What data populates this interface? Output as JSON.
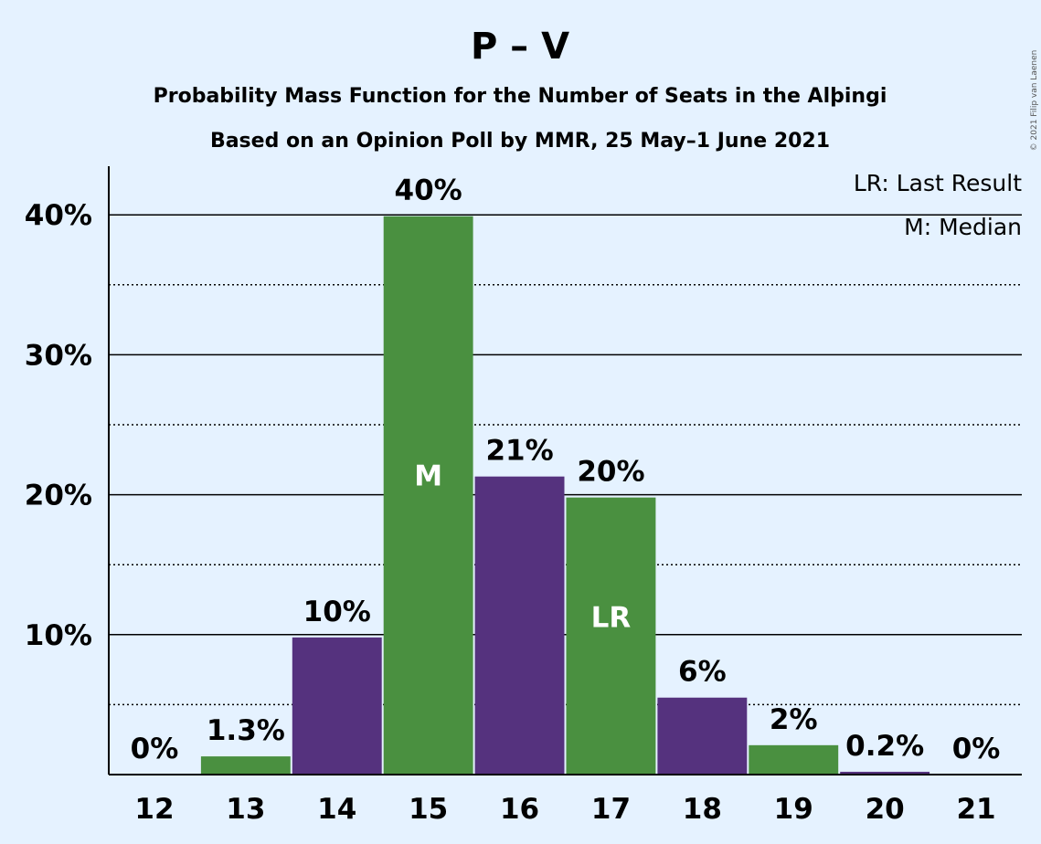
{
  "chart_data": {
    "type": "bar",
    "title": "P – V",
    "subtitle1": "Probability Mass Function for the Number of Seats in the Alþingi",
    "subtitle2": "Based on an Opinion Poll by MMR, 25 May–1 June 2021",
    "categories": [
      "12",
      "13",
      "14",
      "15",
      "16",
      "17",
      "18",
      "19",
      "20",
      "21"
    ],
    "values": [
      0,
      1.3,
      9.8,
      39.9,
      21.3,
      19.8,
      5.5,
      2.1,
      0.2,
      0
    ],
    "data_labels": [
      "0%",
      "1.3%",
      "10%",
      "40%",
      "21%",
      "20%",
      "6%",
      "2%",
      "0.2%",
      "0%"
    ],
    "bar_colors": [
      "#4a9040",
      "#4a9040",
      "#55327e",
      "#4a9040",
      "#55327e",
      "#4a9040",
      "#55327e",
      "#4a9040",
      "#55327e",
      "#4a9040"
    ],
    "in_bar_labels": [
      {
        "category": "15",
        "text": "M"
      },
      {
        "category": "17",
        "text": "LR"
      }
    ],
    "yticks": [
      10,
      20,
      30,
      40
    ],
    "ytick_labels": [
      "10%",
      "20%",
      "30%",
      "40%"
    ],
    "ylim": [
      0,
      43.5
    ],
    "grid": true,
    "legend": [
      "LR: Last Result",
      "M: Median"
    ],
    "legend_position": "top-right",
    "copyright": "© 2021 Filip van Laenen"
  }
}
